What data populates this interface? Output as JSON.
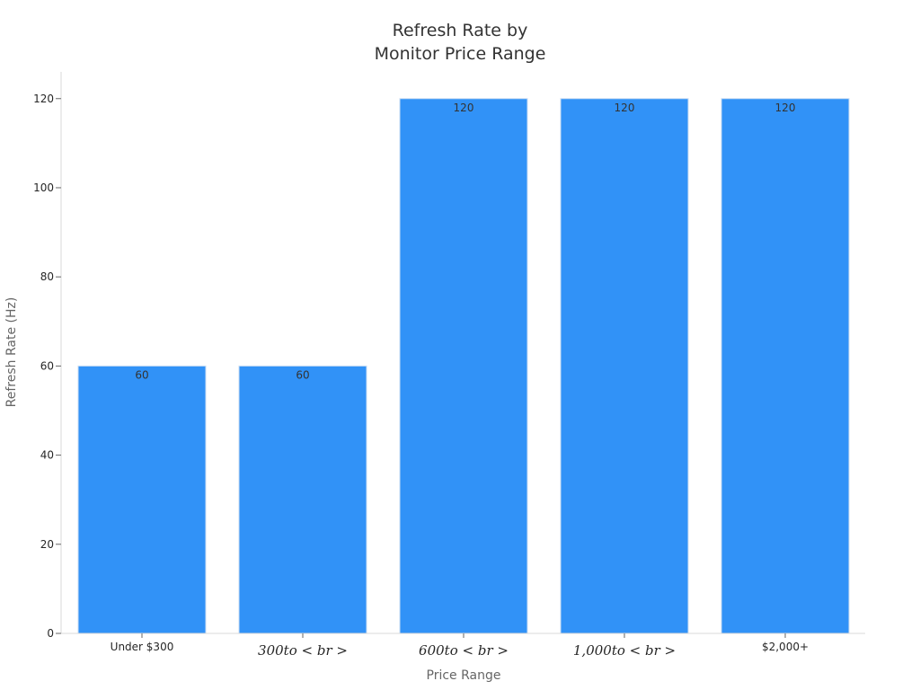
{
  "chart_data": {
    "type": "bar",
    "title": [
      "Refresh Rate by",
      "Monitor Price Range"
    ],
    "xlabel": "Price Range",
    "ylabel": "Refresh Rate (Hz)",
    "categories": [
      "Under $300",
      "$300 to <br>",
      "$600 to <br>",
      "$1,000 to <br>",
      "$2,000+"
    ],
    "category_display": [
      "Under $300",
      "300to < br >",
      "600to < br >",
      "1,000to < br >",
      "$2,000+"
    ],
    "category_style": [
      "plain",
      "math",
      "math",
      "math",
      "plain"
    ],
    "values": [
      60,
      60,
      120,
      120,
      120
    ],
    "data_labels": [
      "60",
      "60",
      "120",
      "120",
      "120"
    ],
    "yticks": [
      0,
      20,
      40,
      60,
      80,
      100,
      120
    ],
    "ylim": [
      0,
      126
    ],
    "grid": false,
    "bar_color": "#3192f7",
    "bar_edge_color": "#c9dcf3"
  }
}
